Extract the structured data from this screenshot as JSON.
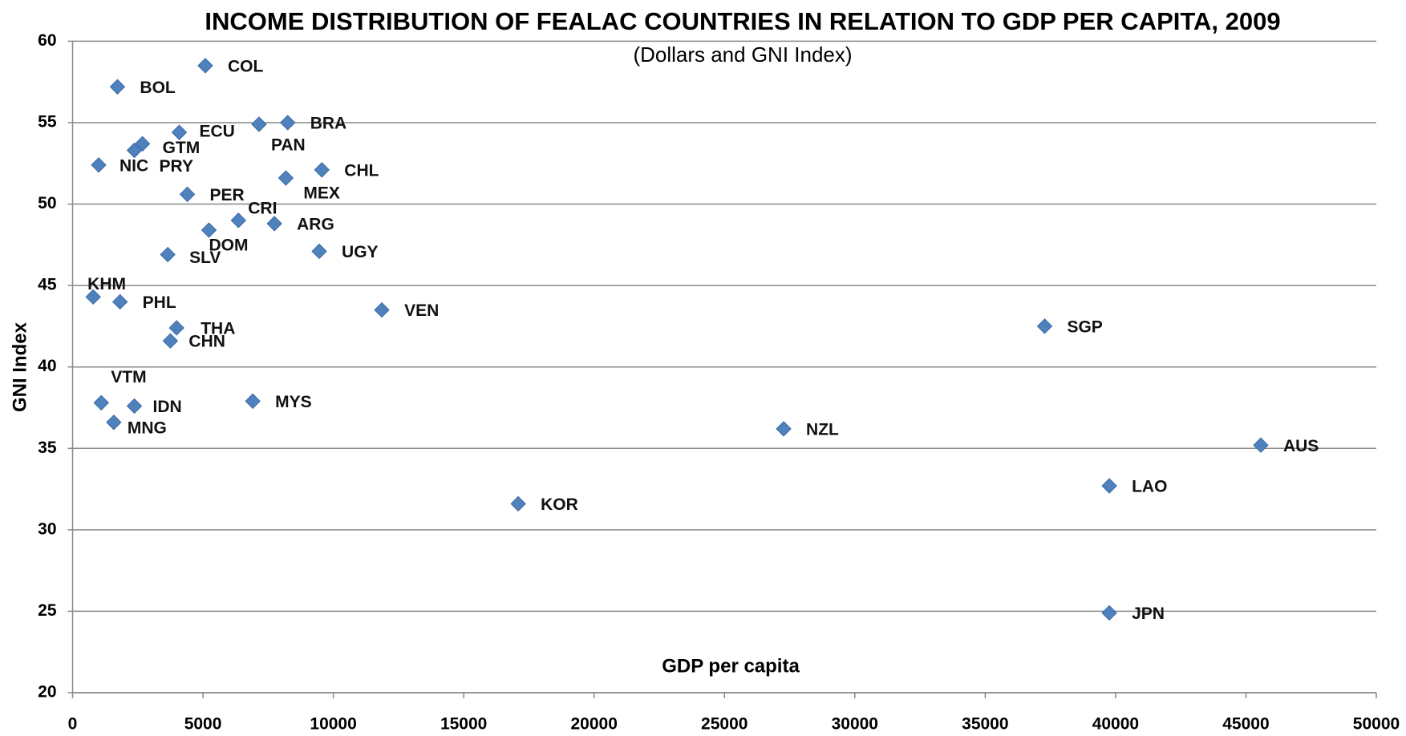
{
  "chart_data": {
    "type": "scatter",
    "title": "INCOME DISTRIBUTION OF FEALAC COUNTRIES IN RELATION TO GDP PER CAPITA, 2009",
    "subtitle": "(Dollars and GNI Index)",
    "xlabel": "GDP per capita",
    "ylabel": "GNI Index",
    "color": "#4f81bd",
    "grid": true,
    "xlim": [
      0,
      50000
    ],
    "ylim": [
      20,
      60
    ],
    "xticks": [
      0,
      5000,
      10000,
      15000,
      20000,
      25000,
      30000,
      35000,
      40000,
      45000,
      50000
    ],
    "yticks": [
      20,
      25,
      30,
      35,
      40,
      45,
      50,
      55,
      60
    ],
    "point_labels": [
      "COL",
      "BOL",
      "BRA",
      "PAN",
      "ECU",
      "GTM",
      "PRY",
      "NIC",
      "CHL",
      "MEX",
      "PER",
      "CRI",
      "ARG",
      "DOM",
      "SLV",
      "UGY",
      "KHM",
      "PHL",
      "VEN",
      "THA",
      "CHN",
      "SGP",
      "VTM",
      "IDN",
      "MYS",
      "MNG",
      "NZL",
      "AUS",
      "LAO",
      "KOR",
      "JPN"
    ],
    "x": [
      5090,
      1720,
      8250,
      7150,
      4090,
      2680,
      2370,
      1000,
      9560,
      8180,
      4400,
      6360,
      7740,
      5230,
      3650,
      9460,
      790,
      1820,
      11860,
      3990,
      3750,
      37280,
      1100,
      2370,
      6910,
      1580,
      27270,
      45570,
      39760,
      17090,
      39760
    ],
    "values": [
      58.5,
      57.2,
      55.0,
      54.9,
      54.4,
      53.7,
      53.3,
      52.4,
      52.1,
      51.6,
      50.6,
      49.0,
      48.8,
      48.4,
      46.9,
      47.1,
      44.3,
      44.0,
      43.5,
      42.4,
      41.6,
      42.5,
      37.8,
      37.6,
      37.9,
      36.6,
      36.2,
      35.2,
      32.7,
      31.6,
      24.9
    ]
  }
}
